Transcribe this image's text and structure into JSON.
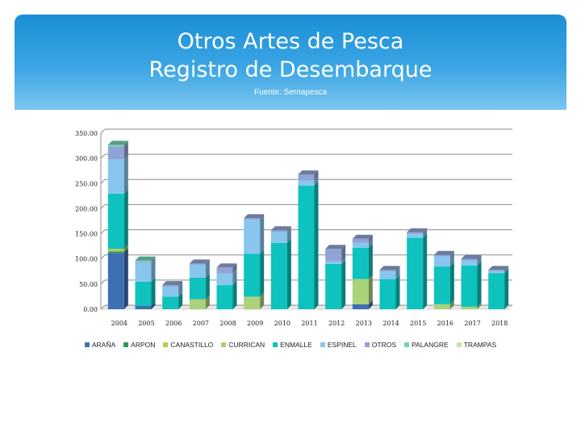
{
  "title_line1": "Otros Artes de Pesca",
  "title_line2": "Registro de Desembarque",
  "subtitle": "Fuente: Sernapesca",
  "colors": {
    "ARAÑA": "#3e6fb3",
    "ARPON": "#2f9a56",
    "CANASTILLO": "#b6cc4e",
    "CURRICAN": "#a9d27a",
    "ENMALLE": "#0ec2bd",
    "ESPINEL": "#88c6ee",
    "OTROS": "#8fa4d4",
    "PALANGRE": "#74d3b4",
    "TRAMPAS": "#bfe6a8"
  },
  "chart_data": {
    "type": "bar",
    "stacked": true,
    "categories": [
      "2004",
      "2005",
      "2006",
      "2007",
      "2008",
      "2009",
      "2010",
      "2011",
      "2012",
      "2013",
      "2014",
      "2015",
      "2016",
      "2017",
      "2018"
    ],
    "ylim": [
      0,
      350
    ],
    "yticks": [
      "0.00",
      "50.00",
      "100.00",
      "150.00",
      "200.00",
      "250.00",
      "300.00",
      "350.00"
    ],
    "ytick_values": [
      0,
      50,
      100,
      150,
      200,
      250,
      300,
      350
    ],
    "grid": true,
    "legend_position": "bottom",
    "series": [
      {
        "name": "ARAÑA",
        "values": [
          112,
          7,
          0,
          0,
          0,
          0,
          0,
          0,
          0,
          10,
          0,
          0,
          0,
          0,
          0
        ]
      },
      {
        "name": "ARPON",
        "values": [
          3,
          0,
          0,
          0,
          0,
          0,
          0,
          0,
          0,
          0,
          0,
          0,
          0,
          0,
          0
        ]
      },
      {
        "name": "CANASTILLO",
        "values": [
          5,
          0,
          0,
          0,
          0,
          0,
          0,
          0,
          0,
          0,
          0,
          0,
          0,
          0,
          0
        ]
      },
      {
        "name": "CURRICAN",
        "values": [
          0,
          0,
          0,
          20,
          0,
          25,
          0,
          0,
          0,
          50,
          0,
          0,
          10,
          5,
          0
        ]
      },
      {
        "name": "ENMALLE",
        "values": [
          110,
          48,
          25,
          43,
          48,
          85,
          132,
          246,
          90,
          62,
          60,
          142,
          75,
          82,
          72
        ]
      },
      {
        "name": "ESPINEL",
        "values": [
          68,
          37,
          20,
          26,
          23,
          68,
          22,
          10,
          5,
          10,
          15,
          8,
          20,
          10,
          4
        ]
      },
      {
        "name": "OTROS",
        "values": [
          26,
          2,
          3,
          2,
          12,
          3,
          3,
          12,
          25,
          8,
          3,
          3,
          3,
          3,
          2
        ]
      },
      {
        "name": "PALANGRE",
        "values": [
          3,
          3,
          0,
          0,
          0,
          0,
          0,
          0,
          0,
          0,
          0,
          0,
          0,
          0,
          0
        ]
      },
      {
        "name": "TRAMPAS",
        "values": [
          0,
          0,
          0,
          0,
          0,
          0,
          0,
          0,
          0,
          0,
          0,
          0,
          0,
          0,
          0
        ]
      }
    ]
  }
}
